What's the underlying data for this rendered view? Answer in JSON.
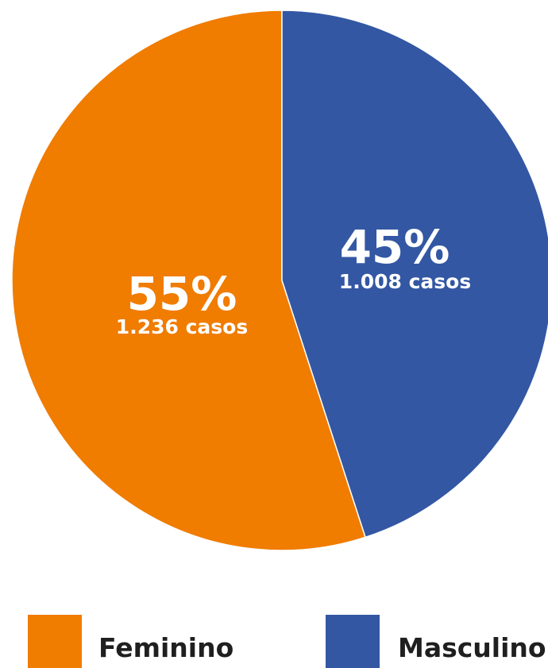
{
  "chart_data": {
    "type": "pie",
    "categories": [
      "Feminino",
      "Masculino"
    ],
    "values": [
      55,
      45
    ],
    "slices": [
      {
        "name": "Feminino",
        "percent_label": "55%",
        "cases_label": "1.236 casos",
        "color": "#F07C00"
      },
      {
        "name": "Masculino",
        "percent_label": "45%",
        "cases_label": "1.008 casos",
        "color": "#3357A3"
      }
    ],
    "legend": [
      {
        "label": "Feminino",
        "color": "#F07C00"
      },
      {
        "label": "Masculino",
        "color": "#3357A3"
      }
    ],
    "legend_position": "bottom"
  }
}
